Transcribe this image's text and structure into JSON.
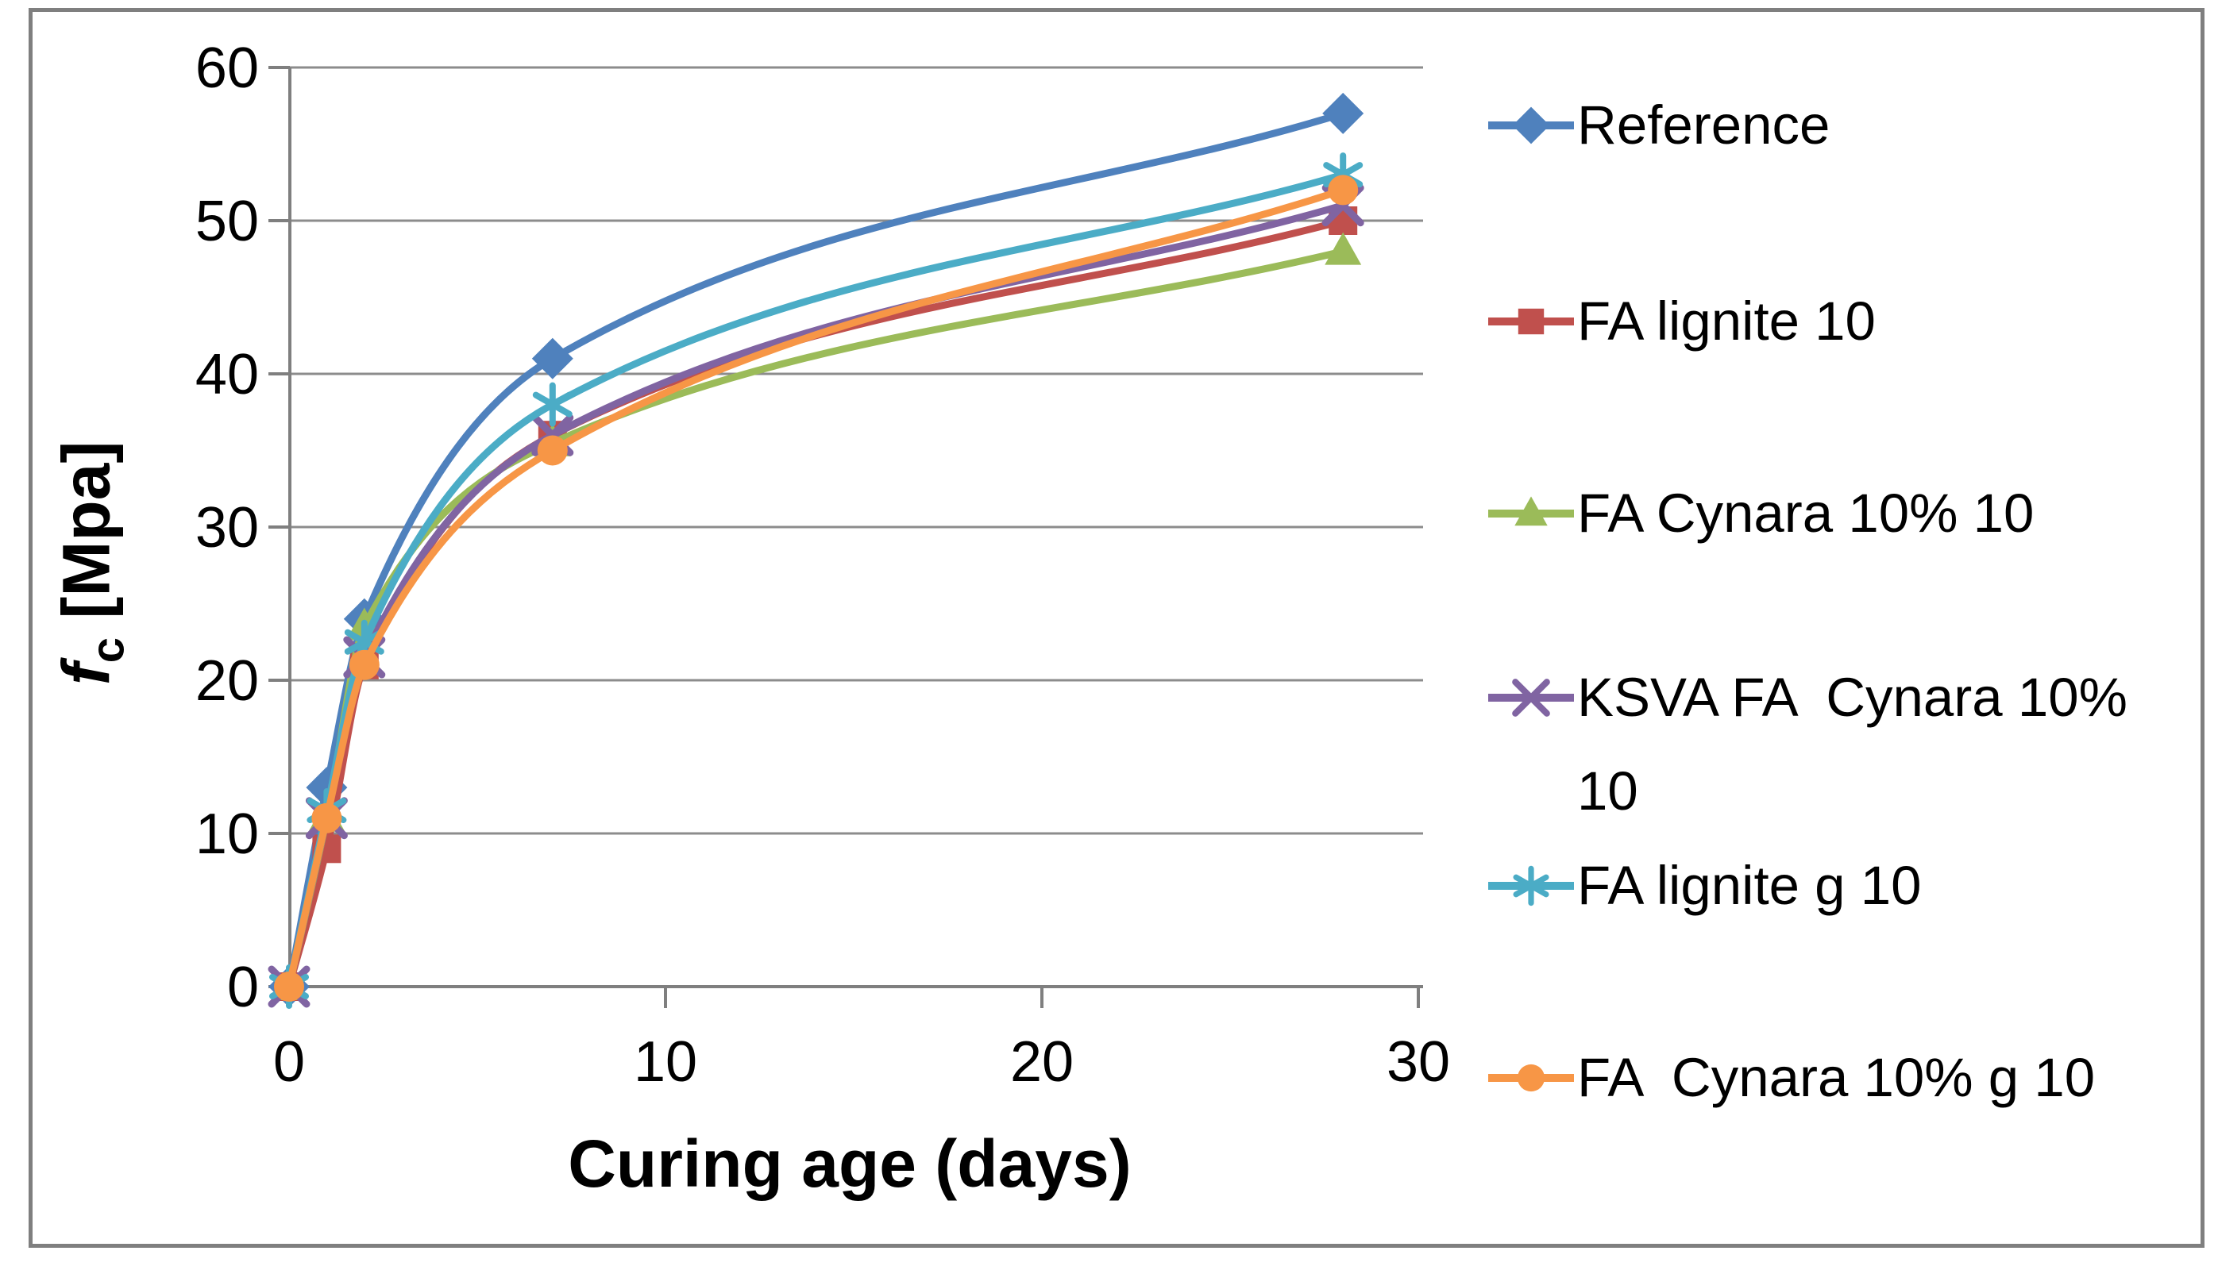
{
  "chart_data": {
    "type": "line",
    "title": "",
    "x": [
      0,
      1,
      2,
      7,
      28
    ],
    "xlabel": "Curing age (days)",
    "ylabel": "fc [Mpa]",
    "ylabel_parts": {
      "symbol": "f",
      "subscript": "c",
      "unit": " [Mpa]"
    },
    "xlim": [
      0,
      30
    ],
    "ylim": [
      0,
      60
    ],
    "x_ticks": [
      0,
      10,
      20,
      30
    ],
    "y_ticks": [
      0,
      10,
      20,
      30,
      40,
      50,
      60
    ],
    "grid": "horizontal",
    "legend_position": "right",
    "line_style": "smooth",
    "series": [
      {
        "name": "Reference",
        "color": "#4F81BD",
        "marker": "diamond",
        "values": [
          0,
          13,
          24,
          41,
          57
        ]
      },
      {
        "name": "FA lignite 10",
        "color": "#C0504D",
        "marker": "square",
        "values": [
          0,
          9,
          21,
          36,
          50
        ]
      },
      {
        "name": "FA Cynara 10% 10",
        "color": "#9BBB59",
        "marker": "triangle",
        "values": [
          0,
          11,
          23.5,
          35.5,
          48
        ]
      },
      {
        "name": "KSVA FA  Cynara 10% 10",
        "color": "#8064A2",
        "marker": "x",
        "values": [
          0,
          11,
          21.5,
          36,
          51
        ]
      },
      {
        "name": "FA lignite g 10",
        "color": "#4BACC6",
        "marker": "asterisk",
        "values": [
          0,
          11.5,
          22.5,
          38,
          53
        ]
      },
      {
        "name": "FA  Cynara 10% g 10",
        "color": "#F79646",
        "marker": "circle",
        "values": [
          0,
          11,
          21,
          35,
          52
        ]
      }
    ]
  },
  "colors": {
    "background": "#ffffff",
    "frame": "#7f7f7f",
    "axis": "#7f7f7f",
    "grid": "#8c8c8c",
    "text": "#000000"
  }
}
